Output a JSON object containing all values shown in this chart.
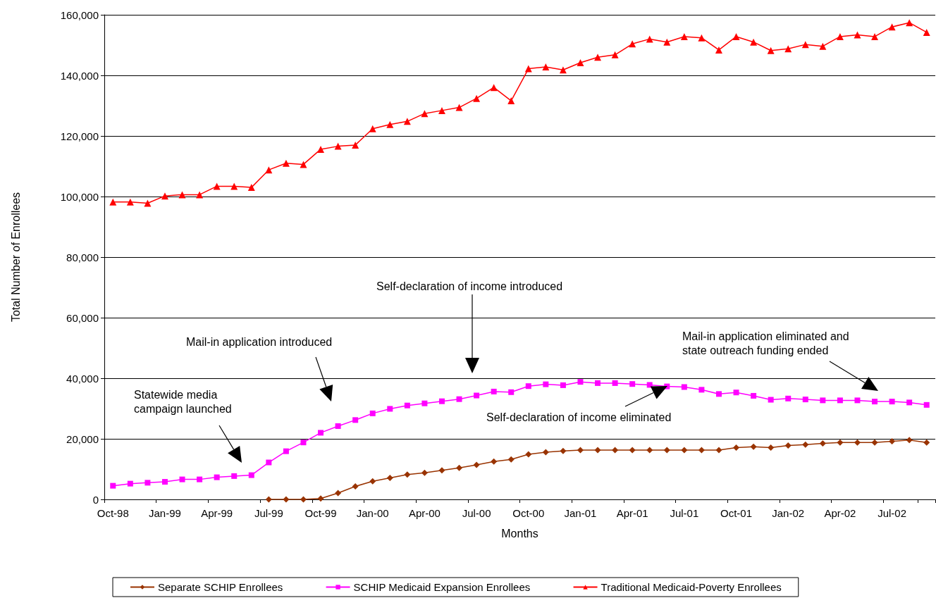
{
  "chart_data": {
    "type": "line",
    "xlabel": "Months",
    "ylabel": "Total Number of Enrollees",
    "categories": [
      "Oct-98",
      null,
      null,
      "Jan-99",
      null,
      null,
      "Apr-99",
      null,
      null,
      "Jul-99",
      null,
      null,
      "Oct-99",
      null,
      null,
      "Jan-00",
      null,
      null,
      "Apr-00",
      null,
      null,
      "Jul-00",
      null,
      null,
      "Oct-00",
      null,
      null,
      "Jan-01",
      null,
      null,
      "Apr-01",
      null,
      null,
      "Jul-01",
      null,
      null,
      "Oct-01",
      null,
      null,
      "Jan-02",
      null,
      null,
      "Apr-02",
      null,
      null,
      "Jul-02",
      null,
      null
    ],
    "series": [
      {
        "name": "Separate SCHIP Enrollees",
        "color": "#993300",
        "marker": "diamond",
        "values": [
          null,
          null,
          null,
          null,
          null,
          null,
          null,
          null,
          null,
          0,
          0,
          0,
          300,
          2100,
          4300,
          6000,
          7100,
          8200,
          8800,
          9600,
          10400,
          11400,
          12500,
          13200,
          14900,
          15600,
          16000,
          16300,
          16300,
          16300,
          16300,
          16300,
          16300,
          16300,
          16300,
          16300,
          17100,
          17400,
          17100,
          17800,
          18100,
          18500,
          18800,
          18800,
          18800,
          19200,
          19600,
          18800
        ]
      },
      {
        "name": "SCHIP Medicaid Expansion Enrollees",
        "color": "#ff00ff",
        "marker": "square",
        "values": [
          4500,
          5200,
          5500,
          5800,
          6600,
          6600,
          7300,
          7700,
          8000,
          12200,
          15900,
          18800,
          22000,
          24200,
          26200,
          28400,
          29900,
          31000,
          31700,
          32400,
          33100,
          34300,
          35600,
          35400,
          37400,
          38000,
          37700,
          38800,
          38400,
          38400,
          38100,
          37800,
          37300,
          37100,
          36200,
          34800,
          35300,
          34200,
          32900,
          33300,
          33000,
          32700,
          32700,
          32700,
          32300,
          32300,
          32000,
          31200
        ]
      },
      {
        "name": "Traditional Medicaid-Poverty Enrollees",
        "color": "#ff0000",
        "marker": "triangle",
        "values": [
          98200,
          98200,
          97800,
          100200,
          100600,
          100600,
          103400,
          103400,
          103000,
          108800,
          111000,
          110600,
          115600,
          116600,
          117000,
          122400,
          123800,
          124800,
          127400,
          128400,
          129400,
          132400,
          136000,
          131600,
          142200,
          142800,
          141800,
          144200,
          146000,
          146800,
          150400,
          152000,
          151000,
          152800,
          152400,
          148400,
          152800,
          151000,
          148200,
          148800,
          150200,
          149600,
          152800,
          153400,
          152800,
          156000,
          157400,
          154200
        ]
      }
    ],
    "ylim": [
      0,
      160000
    ],
    "yticks": [
      0,
      {
        "value": 20000,
        "label": "20,000"
      },
      {
        "value": 40000,
        "label": "40,000"
      },
      {
        "value": 60000,
        "label": "60,000"
      },
      {
        "value": 80000,
        "label": "80,000"
      },
      {
        "value": 100000,
        "label": "100,000"
      },
      {
        "value": 120000,
        "label": "120,000"
      },
      {
        "value": 140000,
        "label": "140,000"
      },
      {
        "value": 160000,
        "label": "160,000"
      }
    ],
    "grid": "y",
    "legend": "bottom",
    "line_style": "solid",
    "annotations": [
      "Statewide media campaign launched",
      "Mail-in application introduced",
      "Self-declaration of income introduced",
      "Self-declaration of income eliminated",
      "Mail-in application eliminated and state outreach funding ended"
    ]
  }
}
